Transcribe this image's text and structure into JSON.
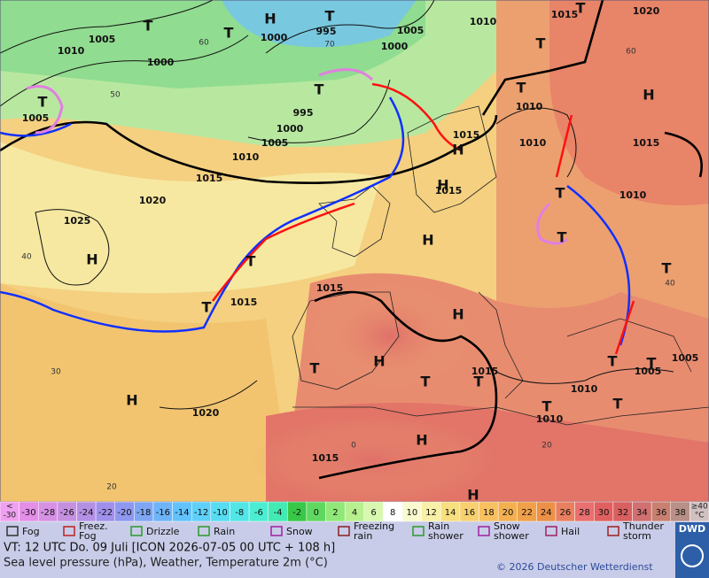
{
  "map": {
    "isobar_labels": [
      "1005",
      "1010",
      "1000",
      "1005",
      "1000",
      "995",
      "1000",
      "1005",
      "1010",
      "1015",
      "1020",
      "995",
      "1000",
      "1005",
      "1010",
      "1015",
      "1020",
      "1025",
      "1015",
      "1010",
      "1010",
      "1015",
      "1015",
      "1015",
      "1015",
      "1010",
      "1005",
      "1005",
      "1015",
      "1010",
      "1010",
      "1020",
      "1015"
    ],
    "pressure_centers": [
      "H",
      "T",
      "T",
      "T",
      "T",
      "T",
      "H",
      "T",
      "T",
      "T",
      "H",
      "H",
      "H",
      "T",
      "T",
      "T",
      "H",
      "T",
      "H",
      "T",
      "T",
      "H",
      "H",
      "T",
      "T",
      "T",
      "T",
      "T",
      "H",
      "H",
      "T"
    ],
    "latitude_labels": [
      "60",
      "50",
      "40",
      "30",
      "20",
      "70",
      "60",
      "40",
      "20",
      "0"
    ]
  },
  "scale": {
    "low": [
      "<",
      "-30"
    ],
    "steps": [
      -30,
      -28,
      -26,
      -24,
      -22,
      -20,
      -18,
      -16,
      -14,
      -12,
      -10,
      -8,
      -6,
      -4,
      -2,
      0,
      2,
      4,
      6,
      8,
      10,
      12,
      14,
      16,
      18,
      20,
      22,
      24,
      26,
      28,
      30,
      32,
      34,
      36,
      38
    ],
    "high": [
      "≥40",
      "°C"
    ]
  },
  "legend": [
    "Fog",
    "Freez. Fog",
    "Drizzle",
    "Rain",
    "Snow",
    "Freezing rain",
    "Rain shower",
    "Snow shower",
    "Hail",
    "Thunder storm"
  ],
  "logo": "DWD",
  "info": {
    "valid_time": "VT: 12 UTC Do.  09 Juli [ICON 2026-07-05  00 UTC + 108 h]",
    "description": "Sea level pressure (hPa), Weather, Temperature 2m (°C)",
    "copyright": "© 2026 Deutscher Wetterdienst"
  }
}
